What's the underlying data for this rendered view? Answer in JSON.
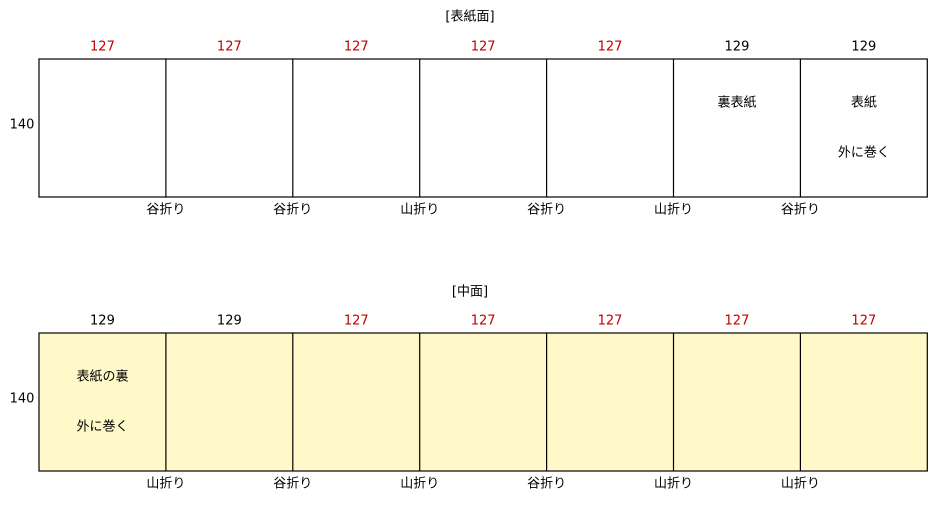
{
  "sections": [
    {
      "title": "[表紙面]",
      "height": 140,
      "fill": "#ffffff",
      "panels": [
        {
          "width": 127,
          "width_color": "#c00000"
        },
        {
          "width": 127,
          "width_color": "#c00000"
        },
        {
          "width": 127,
          "width_color": "#c00000"
        },
        {
          "width": 127,
          "width_color": "#c00000"
        },
        {
          "width": 127,
          "width_color": "#c00000"
        },
        {
          "width": 129,
          "width_color": "#000000",
          "texts": [
            "裏表紙"
          ]
        },
        {
          "width": 129,
          "width_color": "#000000",
          "texts": [
            "表紙",
            "外に巻く"
          ]
        }
      ],
      "folds": [
        "谷折り",
        "谷折り",
        "山折り",
        "谷折り",
        "山折り",
        "谷折り"
      ]
    },
    {
      "title": "[中面]",
      "height": 140,
      "fill": "#fff9c9",
      "panels": [
        {
          "width": 129,
          "width_color": "#000000",
          "texts": [
            "表紙の裏",
            "外に巻く"
          ]
        },
        {
          "width": 129,
          "width_color": "#000000"
        },
        {
          "width": 127,
          "width_color": "#c00000"
        },
        {
          "width": 127,
          "width_color": "#c00000"
        },
        {
          "width": 127,
          "width_color": "#c00000"
        },
        {
          "width": 127,
          "width_color": "#c00000"
        },
        {
          "width": 127,
          "width_color": "#c00000"
        }
      ],
      "folds": [
        "山折り",
        "谷折り",
        "山折り",
        "谷折り",
        "山折り",
        "山折り"
      ]
    }
  ]
}
